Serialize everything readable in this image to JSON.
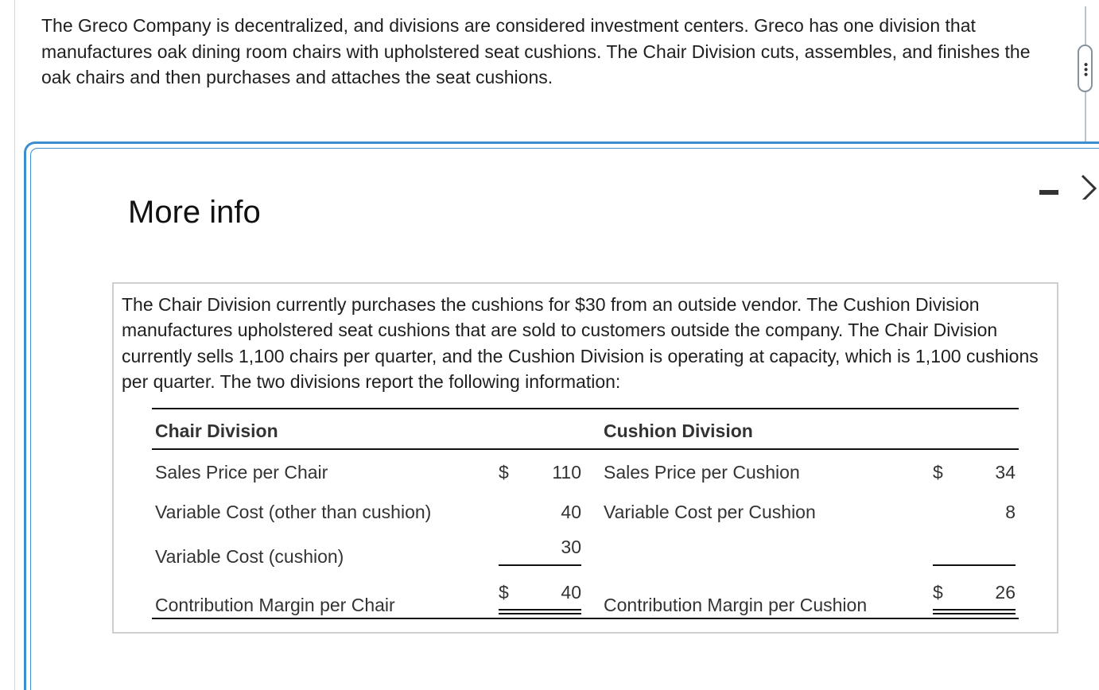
{
  "intro_text": "The Greco Company is decentralized, and divisions are considered investment centers. Greco has one division that manufactures oak dining room chairs with upholstered seat cushions. The Chair Division cuts, assembles, and finishes the oak chairs and then purchases and attaches the seat cushions.",
  "dialog": {
    "title": "More info",
    "minimize_icon": "minimize-icon",
    "close_icon": "close-icon",
    "info_text": "The Chair Division currently purchases the cushions for $30 from an outside vendor. The Cushion Division manufactures upholstered seat cushions that are sold to customers outside the company. The Chair Division currently sells 1,100 chairs per quarter, and the Cushion Division is operating at capacity, which is 1,100 cushions per quarter. The two divisions report the following information:"
  },
  "table": {
    "chair": {
      "header": "Chair Division",
      "rows": [
        {
          "label": "Sales Price per Chair",
          "currency": "$",
          "value": "110"
        },
        {
          "label": "Variable Cost (other than cushion)",
          "currency": "",
          "value": "40"
        },
        {
          "label": "Variable Cost (cushion)",
          "currency": "",
          "value": "30"
        },
        {
          "label": "Contribution Margin per Chair",
          "currency": "$",
          "value": "40"
        }
      ]
    },
    "cushion": {
      "header": "Cushion Division",
      "rows": [
        {
          "label": "Sales Price per Cushion",
          "currency": "$",
          "value": "34"
        },
        {
          "label": "Variable Cost per Cushion",
          "currency": "",
          "value": "8"
        },
        {
          "label": "Contribution Margin per Cushion",
          "currency": "$",
          "value": "26"
        }
      ]
    }
  }
}
